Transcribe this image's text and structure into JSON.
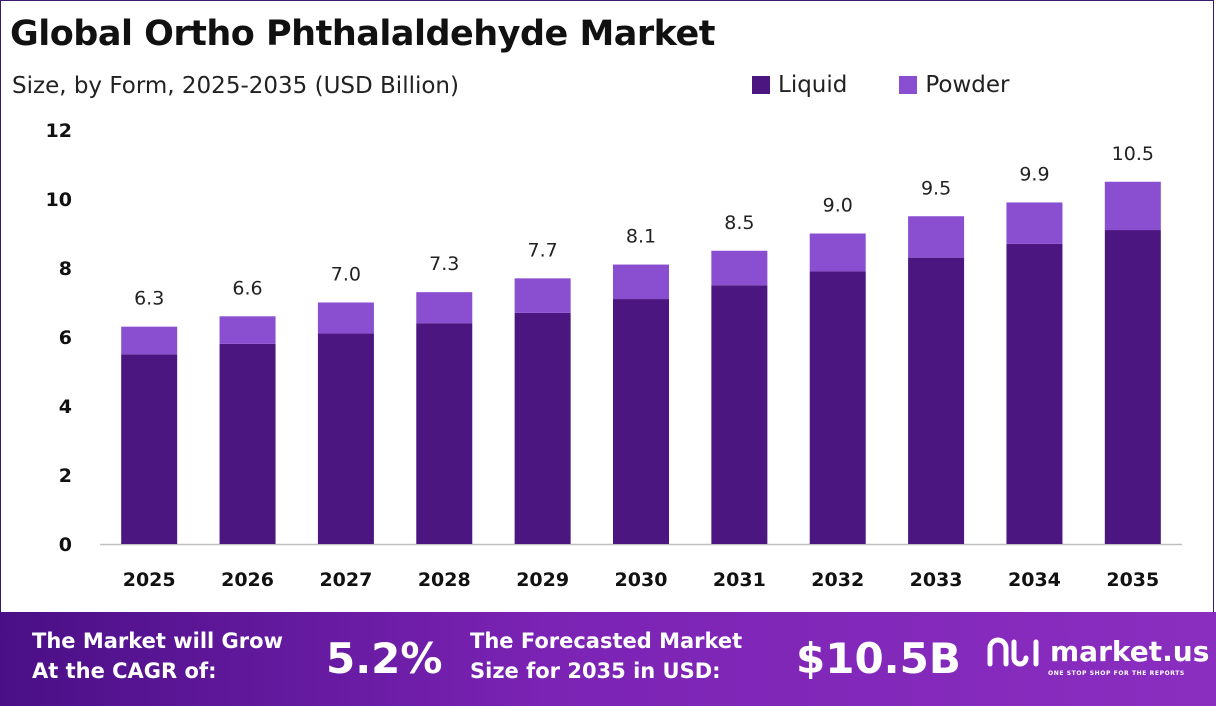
{
  "header": {
    "title": "Global Ortho Phthalaldehyde Market",
    "subtitle": "Size, by Form, 2025-2035 (USD Billion)"
  },
  "colors": {
    "liquid": "#4b1680",
    "powder": "#8a4fd0",
    "axis": "#bfbfbf"
  },
  "chart_data": {
    "type": "bar",
    "stacked": true,
    "title": "Global Ortho Phthalaldehyde Market",
    "subtitle": "Size, by Form, 2025-2035 (USD Billion)",
    "categories": [
      "2025",
      "2026",
      "2027",
      "2028",
      "2029",
      "2030",
      "2031",
      "2032",
      "2033",
      "2034",
      "2035"
    ],
    "series": [
      {
        "name": "Liquid",
        "values": [
          5.5,
          5.8,
          6.1,
          6.4,
          6.7,
          7.1,
          7.5,
          7.9,
          8.3,
          8.7,
          9.1
        ]
      },
      {
        "name": "Powder",
        "values": [
          0.8,
          0.8,
          0.9,
          0.9,
          1.0,
          1.0,
          1.0,
          1.1,
          1.2,
          1.2,
          1.4
        ]
      }
    ],
    "totals": [
      "6.3",
      "6.6",
      "7.0",
      "7.3",
      "7.7",
      "8.1",
      "8.5",
      "9.0",
      "9.5",
      "9.9",
      "10.5"
    ],
    "yticks": [
      "0",
      "2",
      "4",
      "6",
      "8",
      "10",
      "12"
    ],
    "ylim": [
      0,
      12
    ],
    "grid": false,
    "legend": "top-right"
  },
  "footer": {
    "cagr_label_line1": "The Market will Grow",
    "cagr_label_line2": "At the CAGR of:",
    "cagr_value": "5.2%",
    "forecast_label_line1": "The Forecasted Market",
    "forecast_label_line2": "Size for 2035 in USD:",
    "forecast_value": "$10.5B",
    "logo_text": "market.us",
    "logo_tagline": "ONE STOP SHOP FOR THE REPORTS"
  }
}
